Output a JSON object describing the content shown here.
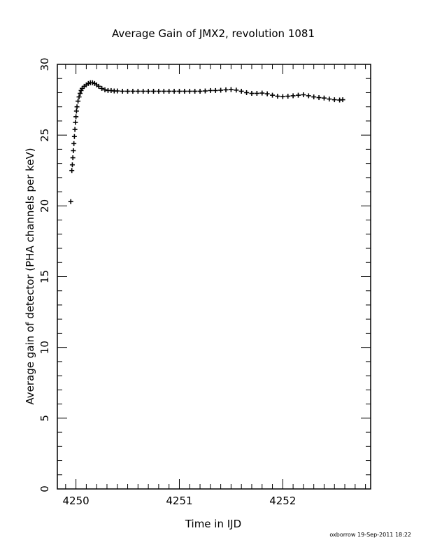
{
  "footer": {
    "credit": "oxborrow 19-Sep-2011 18:22"
  },
  "chart_data": {
    "type": "scatter",
    "title": "Average Gain of JMX2, revolution 1081",
    "xlabel": "Time in IJD",
    "ylabel": "Average gain of detector (PHA channels per keV)",
    "xlim": [
      4249.82,
      4252.85
    ],
    "ylim": [
      0,
      30
    ],
    "xticks": [
      4250,
      4251,
      4252
    ],
    "yticks": [
      0,
      5,
      10,
      15,
      20,
      25,
      30
    ],
    "grid": false,
    "marker": "+",
    "series": [
      {
        "x": [
          4249.95,
          4249.96,
          4249.965,
          4249.97,
          4249.975,
          4249.98,
          4249.985,
          4249.99,
          4249.995,
          4250.0,
          4250.005,
          4250.01,
          4250.02,
          4250.03,
          4250.04,
          4250.05,
          4250.06,
          4250.08,
          4250.1,
          4250.12,
          4250.14,
          4250.16,
          4250.18,
          4250.2,
          4250.22,
          4250.25,
          4250.28,
          4250.31,
          4250.34,
          4250.37,
          4250.4,
          4250.45,
          4250.5,
          4250.55,
          4250.6,
          4250.65,
          4250.7,
          4250.75,
          4250.8,
          4250.85,
          4250.9,
          4250.95,
          4251.0,
          4251.05,
          4251.1,
          4251.15,
          4251.2,
          4251.25,
          4251.3,
          4251.35,
          4251.4,
          4251.45,
          4251.5,
          4251.55,
          4251.6,
          4251.65,
          4251.7,
          4251.75,
          4251.8,
          4251.85,
          4251.9,
          4251.95,
          4252.0,
          4252.05,
          4252.1,
          4252.15,
          4252.2,
          4252.25,
          4252.3,
          4252.35,
          4252.4,
          4252.45,
          4252.5,
          4252.55,
          4252.58
        ],
        "y": [
          20.3,
          22.5,
          22.9,
          23.4,
          23.9,
          24.4,
          24.9,
          25.4,
          25.9,
          26.3,
          26.7,
          27.0,
          27.4,
          27.7,
          27.95,
          28.15,
          28.3,
          28.45,
          28.55,
          28.65,
          28.7,
          28.7,
          28.65,
          28.55,
          28.45,
          28.3,
          28.2,
          28.15,
          28.15,
          28.12,
          28.12,
          28.1,
          28.1,
          28.1,
          28.1,
          28.1,
          28.1,
          28.1,
          28.1,
          28.1,
          28.1,
          28.1,
          28.1,
          28.1,
          28.1,
          28.1,
          28.1,
          28.12,
          28.15,
          28.15,
          28.17,
          28.2,
          28.22,
          28.18,
          28.1,
          28.0,
          27.95,
          27.95,
          27.97,
          27.92,
          27.82,
          27.75,
          27.72,
          27.75,
          27.78,
          27.82,
          27.85,
          27.78,
          27.7,
          27.65,
          27.62,
          27.55,
          27.5,
          27.48,
          27.5
        ]
      }
    ]
  }
}
